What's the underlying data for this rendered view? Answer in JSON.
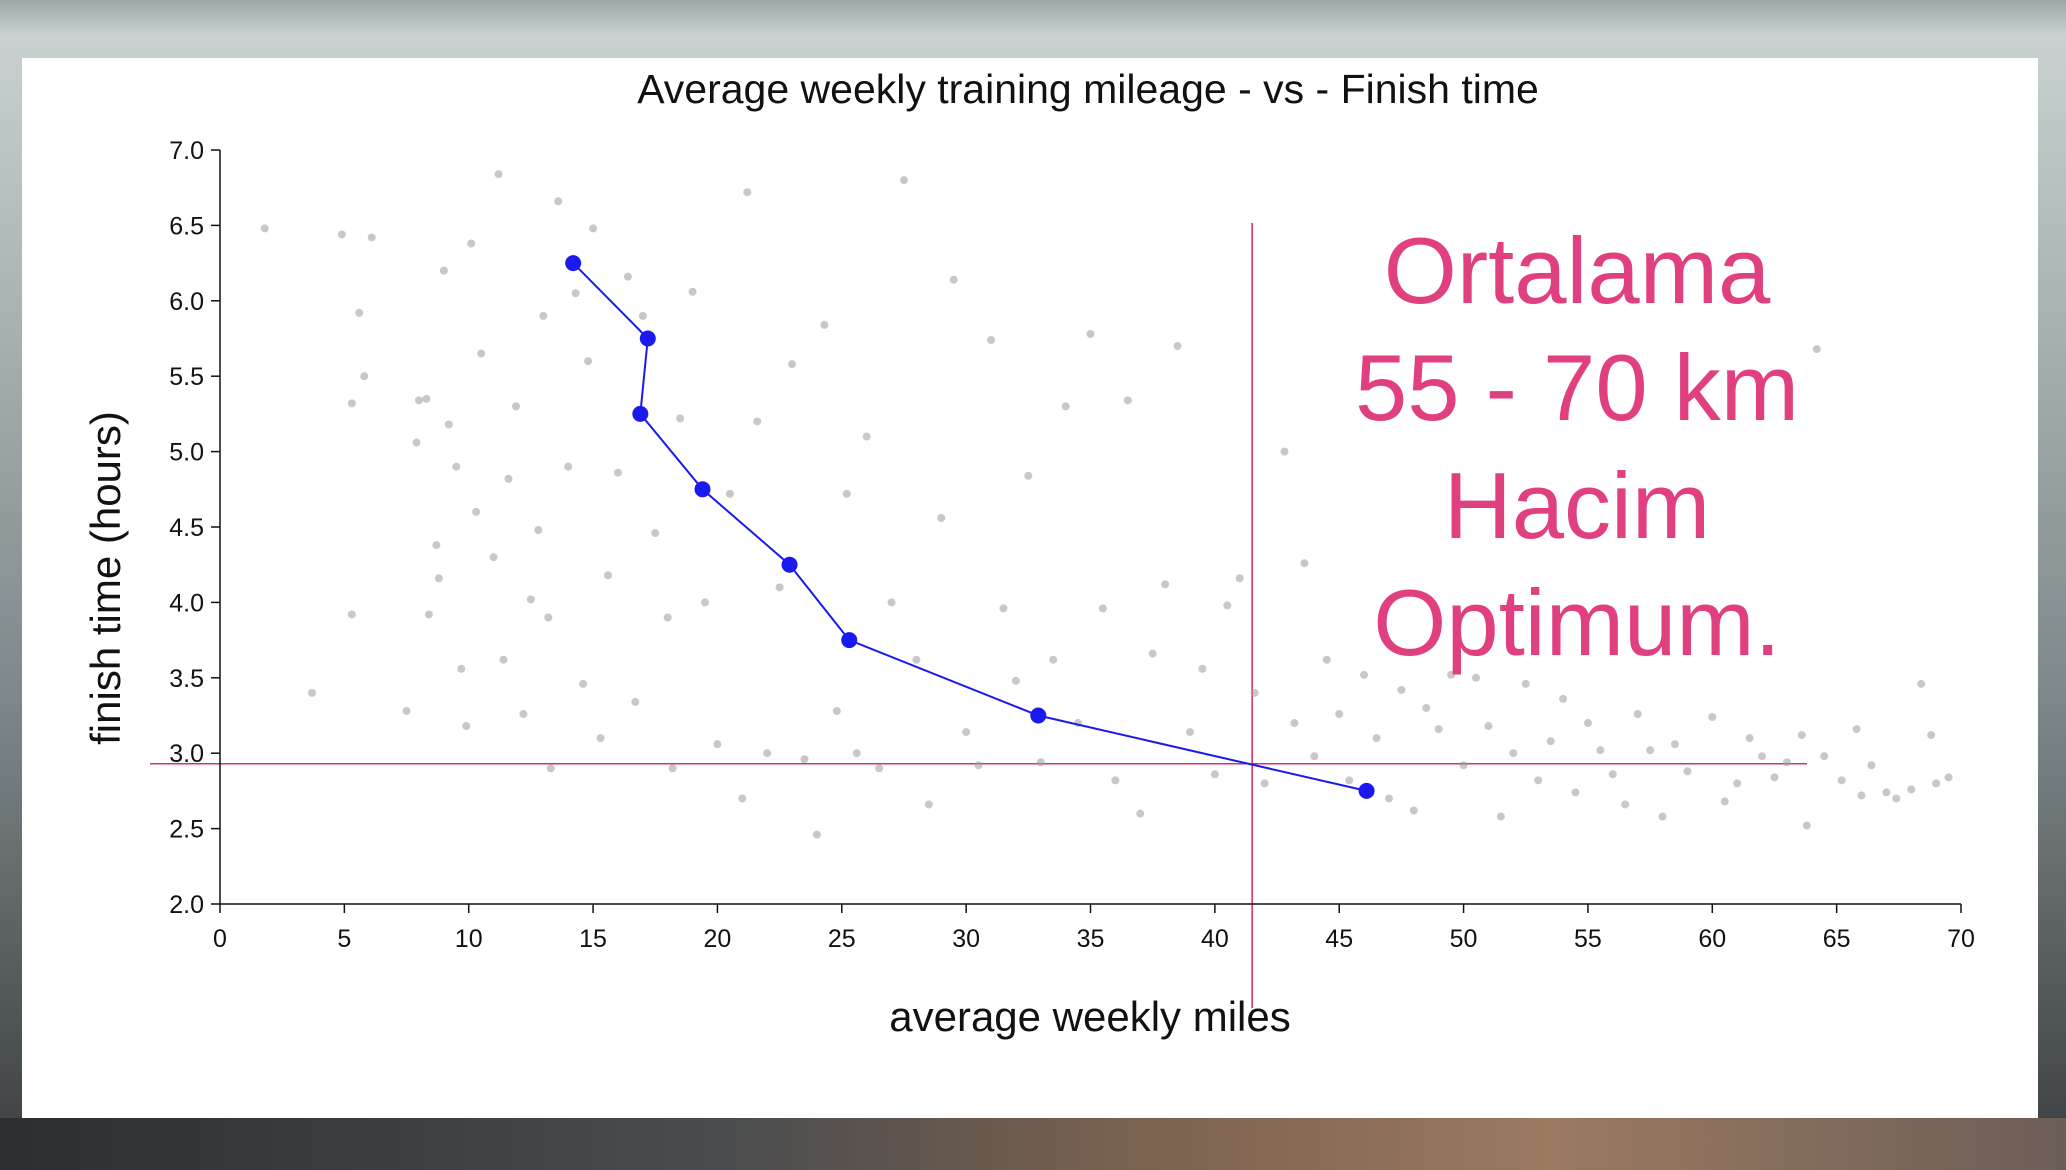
{
  "chart_data": {
    "type": "scatter",
    "title": "Average weekly training mileage - vs - Finish time",
    "xlabel": "average weekly miles",
    "ylabel": "finish time (hours)",
    "xlim": [
      0,
      70
    ],
    "ylim": [
      2.0,
      7.0
    ],
    "x_ticks": [
      "0",
      "5",
      "10",
      "15",
      "20",
      "25",
      "30",
      "35",
      "40",
      "45",
      "50",
      "55",
      "60",
      "65",
      "70"
    ],
    "y_ticks": [
      "2.0",
      "2.5",
      "3.0",
      "3.5",
      "4.0",
      "4.5",
      "5.0",
      "5.5",
      "6.0",
      "6.5",
      "7.0"
    ],
    "grid": false,
    "series": [
      {
        "kind": "scatter-cloud",
        "color": "#9a9a9a",
        "points": [
          [
            1.8,
            6.48
          ],
          [
            3.7,
            3.4
          ],
          [
            4.9,
            6.44
          ],
          [
            5.3,
            3.92
          ],
          [
            5.3,
            5.32
          ],
          [
            5.6,
            5.92
          ],
          [
            5.8,
            5.5
          ],
          [
            6.1,
            6.42
          ],
          [
            7.5,
            3.28
          ],
          [
            7.9,
            5.06
          ],
          [
            8.0,
            5.34
          ],
          [
            8.3,
            5.35
          ],
          [
            8.4,
            3.92
          ],
          [
            8.7,
            4.38
          ],
          [
            8.8,
            4.16
          ],
          [
            9.0,
            6.2
          ],
          [
            9.2,
            5.18
          ],
          [
            9.5,
            4.9
          ],
          [
            9.7,
            3.56
          ],
          [
            9.9,
            3.18
          ],
          [
            10.1,
            6.38
          ],
          [
            10.3,
            4.6
          ],
          [
            10.5,
            5.65
          ],
          [
            11.0,
            4.3
          ],
          [
            11.2,
            6.84
          ],
          [
            11.4,
            3.62
          ],
          [
            11.6,
            4.82
          ],
          [
            11.9,
            5.3
          ],
          [
            12.2,
            3.26
          ],
          [
            12.5,
            4.02
          ],
          [
            12.8,
            4.48
          ],
          [
            13.0,
            5.9
          ],
          [
            13.2,
            3.9
          ],
          [
            13.3,
            2.9
          ],
          [
            13.6,
            6.66
          ],
          [
            14.0,
            4.9
          ],
          [
            14.3,
            6.05
          ],
          [
            14.6,
            3.46
          ],
          [
            14.8,
            5.6
          ],
          [
            15.0,
            6.48
          ],
          [
            15.3,
            3.1
          ],
          [
            15.6,
            4.18
          ],
          [
            16.0,
            4.86
          ],
          [
            16.4,
            6.16
          ],
          [
            16.7,
            3.34
          ],
          [
            17.0,
            5.9
          ],
          [
            17.5,
            4.46
          ],
          [
            18.0,
            3.9
          ],
          [
            18.2,
            2.9
          ],
          [
            18.5,
            5.22
          ],
          [
            19.0,
            6.06
          ],
          [
            19.5,
            4.0
          ],
          [
            20.0,
            3.06
          ],
          [
            20.5,
            4.72
          ],
          [
            21.0,
            2.7
          ],
          [
            21.2,
            6.72
          ],
          [
            21.6,
            5.2
          ],
          [
            22.0,
            3.0
          ],
          [
            22.5,
            4.1
          ],
          [
            23.0,
            5.58
          ],
          [
            23.5,
            2.96
          ],
          [
            24.0,
            2.46
          ],
          [
            24.3,
            5.84
          ],
          [
            24.8,
            3.28
          ],
          [
            25.2,
            4.72
          ],
          [
            25.6,
            3.0
          ],
          [
            26.0,
            5.1
          ],
          [
            26.5,
            2.9
          ],
          [
            27.0,
            4.0
          ],
          [
            27.5,
            6.8
          ],
          [
            28.0,
            3.62
          ],
          [
            28.5,
            2.66
          ],
          [
            29.0,
            4.56
          ],
          [
            29.5,
            6.14
          ],
          [
            30.0,
            3.14
          ],
          [
            30.5,
            2.92
          ],
          [
            31.0,
            5.74
          ],
          [
            31.5,
            3.96
          ],
          [
            32.0,
            3.48
          ],
          [
            32.5,
            4.84
          ],
          [
            33.0,
            2.94
          ],
          [
            33.5,
            3.62
          ],
          [
            34.0,
            5.3
          ],
          [
            34.5,
            3.2
          ],
          [
            35.0,
            5.78
          ],
          [
            35.5,
            3.96
          ],
          [
            36.0,
            2.82
          ],
          [
            36.5,
            5.34
          ],
          [
            37.0,
            2.6
          ],
          [
            37.5,
            3.66
          ],
          [
            38.0,
            4.12
          ],
          [
            38.5,
            5.7
          ],
          [
            39.0,
            3.14
          ],
          [
            39.5,
            3.56
          ],
          [
            40.0,
            2.86
          ],
          [
            40.5,
            3.98
          ],
          [
            41.0,
            4.16
          ],
          [
            41.6,
            3.4
          ],
          [
            42.0,
            2.8
          ],
          [
            42.8,
            5.0
          ],
          [
            43.2,
            3.2
          ],
          [
            43.6,
            4.26
          ],
          [
            44.0,
            2.98
          ],
          [
            44.5,
            3.62
          ],
          [
            45.0,
            3.26
          ],
          [
            45.4,
            2.82
          ],
          [
            46.0,
            3.52
          ],
          [
            46.5,
            3.1
          ],
          [
            47.0,
            2.7
          ],
          [
            47.5,
            3.42
          ],
          [
            48.0,
            2.62
          ],
          [
            48.5,
            3.3
          ],
          [
            49.0,
            3.16
          ],
          [
            49.5,
            3.52
          ],
          [
            50.0,
            2.92
          ],
          [
            50.5,
            3.5
          ],
          [
            51.0,
            3.18
          ],
          [
            51.5,
            2.58
          ],
          [
            52.0,
            3.0
          ],
          [
            52.5,
            3.46
          ],
          [
            53.0,
            2.82
          ],
          [
            53.5,
            3.08
          ],
          [
            54.0,
            3.36
          ],
          [
            54.5,
            2.74
          ],
          [
            55.0,
            3.2
          ],
          [
            55.5,
            3.02
          ],
          [
            56.0,
            2.86
          ],
          [
            56.5,
            2.66
          ],
          [
            57.0,
            3.26
          ],
          [
            57.5,
            3.02
          ],
          [
            58.0,
            2.58
          ],
          [
            58.5,
            3.06
          ],
          [
            59.0,
            2.88
          ],
          [
            60.0,
            3.24
          ],
          [
            60.5,
            2.68
          ],
          [
            61.0,
            2.8
          ],
          [
            61.5,
            3.1
          ],
          [
            62.0,
            2.98
          ],
          [
            62.5,
            2.84
          ],
          [
            63.0,
            2.94
          ],
          [
            63.6,
            3.12
          ],
          [
            63.8,
            2.52
          ],
          [
            64.2,
            5.68
          ],
          [
            64.5,
            2.98
          ],
          [
            65.2,
            2.82
          ],
          [
            65.8,
            3.16
          ],
          [
            66.0,
            2.72
          ],
          [
            66.4,
            2.92
          ],
          [
            67.0,
            2.74
          ],
          [
            67.4,
            2.7
          ],
          [
            68.0,
            2.76
          ],
          [
            68.4,
            3.46
          ],
          [
            68.8,
            3.12
          ],
          [
            69.0,
            2.8
          ],
          [
            69.5,
            2.84
          ]
        ]
      },
      {
        "kind": "trend-line",
        "color": "#1a1aee",
        "points": [
          [
            14.2,
            6.25
          ],
          [
            17.2,
            5.75
          ],
          [
            16.9,
            5.25
          ],
          [
            19.4,
            4.75
          ],
          [
            22.9,
            4.25
          ],
          [
            25.3,
            3.75
          ],
          [
            32.9,
            3.25
          ],
          [
            46.1,
            2.75
          ]
        ]
      }
    ],
    "reference_lines": {
      "vertical_x": 41.5,
      "horizontal_y": 2.93,
      "color": "#d6336c"
    },
    "annotation": {
      "lines": [
        "Ortalama",
        "55 - 70 km",
        "Hacim",
        "Optimum."
      ],
      "color": "#e0407f"
    }
  }
}
